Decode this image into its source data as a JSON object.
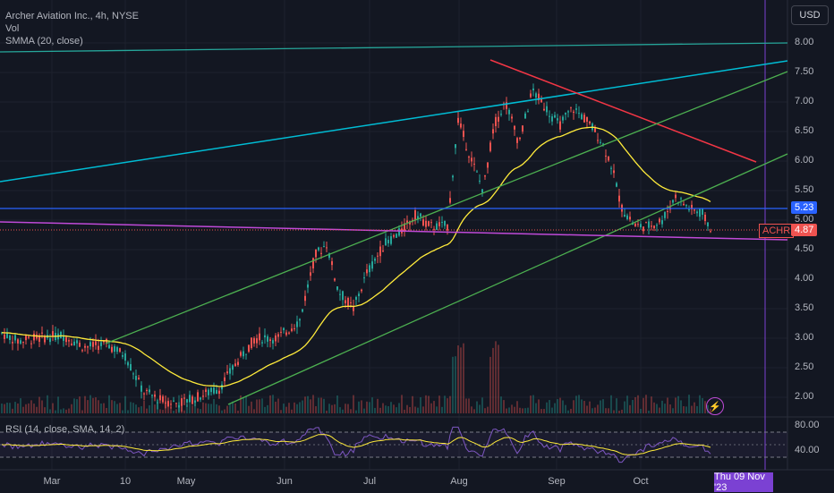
{
  "header": {
    "title": "Archer Aviation Inc., 4h, NYSE",
    "vol_label": "Vol",
    "smma_label": "SMMA (20, close)",
    "currency_button": "USD"
  },
  "price_axis": {
    "ticks": [
      "8.00",
      "7.50",
      "7.00",
      "6.50",
      "6.00",
      "5.50",
      "5.00",
      "4.50",
      "4.00",
      "3.50",
      "3.00",
      "2.50",
      "2.00"
    ]
  },
  "price_tags": {
    "level_line": "5.23",
    "ticker": "ACHR",
    "last_price": "4.87"
  },
  "rsi": {
    "label": "RSI (14, close, SMA, 14, 2)",
    "ticks": [
      "80.00",
      "40.00"
    ]
  },
  "time_axis": {
    "labels": [
      "Mar",
      "10",
      "May",
      "Jun",
      "Jul",
      "Aug",
      "Sep",
      "Oct"
    ],
    "crosshair_date": "Thu 09 Nov '23"
  },
  "colors": {
    "background": "#131722",
    "up": "#26a69a",
    "down": "#ef5350",
    "smma": "#ffeb3b",
    "horizontal_level": "#2962ff",
    "purple_line": "#c04ad8",
    "channel": "#4caf50",
    "cyan_line": "#00bcd4",
    "red_trend": "#f23645",
    "rsi_line": "#7e57c2",
    "crosshair": "#7b41d3"
  },
  "icons": {
    "lightning": "lightning-icon"
  }
}
